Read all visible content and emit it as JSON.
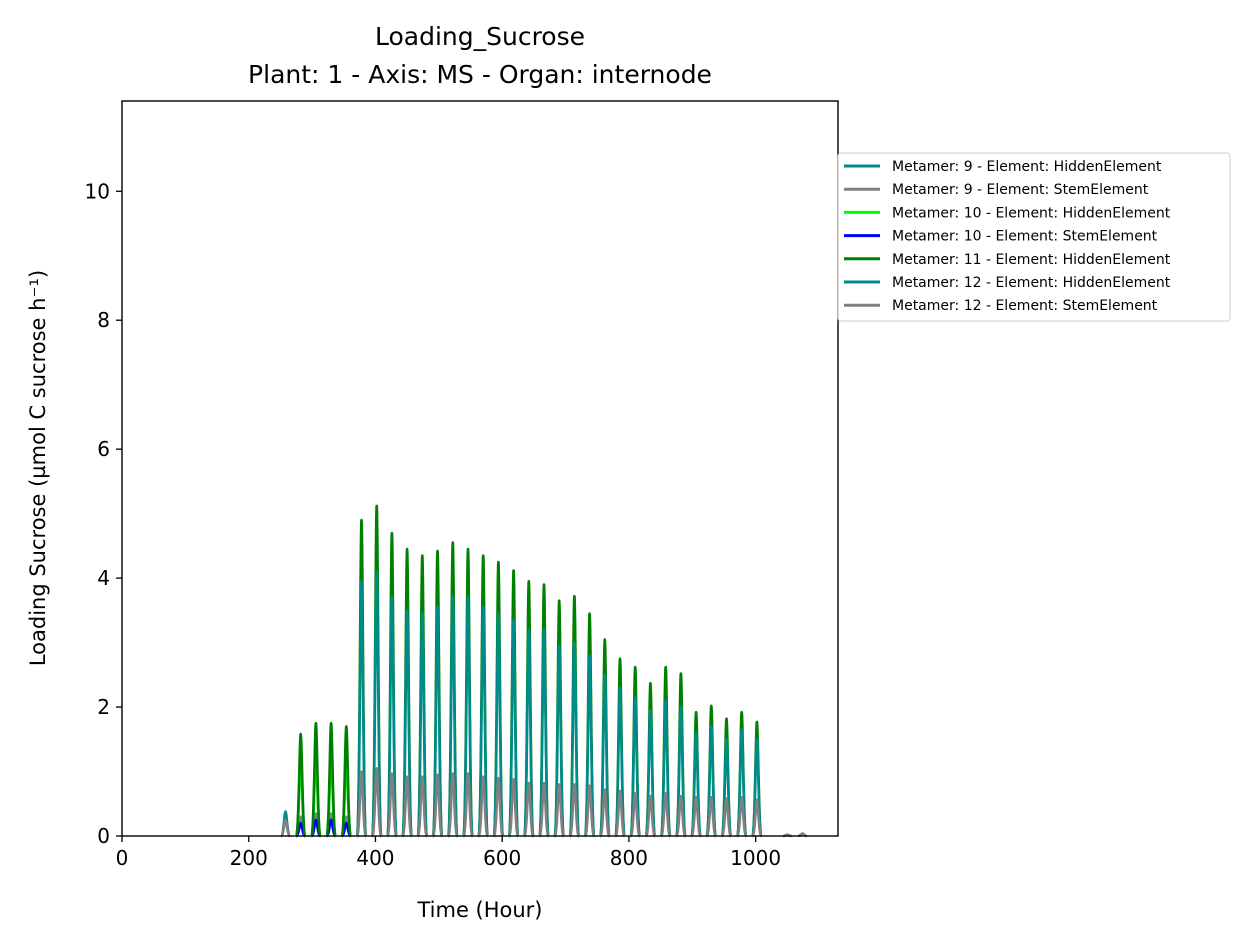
{
  "chart_data": {
    "type": "line",
    "title": "Loading_Sucrose",
    "subtitle": "Plant: 1 - Axis: MS - Organ: internode",
    "xlabel": "Time (Hour)",
    "ylabel": "Loading Sucrose (µmol C sucrose h⁻¹)",
    "xlim": [
      0,
      1130
    ],
    "ylim": [
      0,
      11.4
    ],
    "xticks": [
      0,
      200,
      400,
      600,
      800,
      1000
    ],
    "yticks": [
      0,
      2,
      4,
      6,
      8,
      10
    ],
    "grid": false,
    "legend_position": "outside-right",
    "series": [
      {
        "name": "Metamer: 9 - Element: HiddenElement",
        "color": "#008b8b",
        "peaks": [
          {
            "x": 258,
            "y": 0.38
          },
          {
            "x": 282,
            "y": 1.3
          },
          {
            "x": 306,
            "y": 1.4
          },
          {
            "x": 330,
            "y": 1.35
          },
          {
            "x": 354,
            "y": 1.25
          }
        ]
      },
      {
        "name": "Metamer: 9 - Element: StemElement",
        "color": "#808080",
        "peaks": [
          {
            "x": 258,
            "y": 0.25
          },
          {
            "x": 282,
            "y": 0.3
          },
          {
            "x": 306,
            "y": 0.35
          },
          {
            "x": 330,
            "y": 0.35
          },
          {
            "x": 354,
            "y": 0.3
          }
        ]
      },
      {
        "name": "Metamer: 10 - Element: HiddenElement",
        "color": "#00ff00",
        "peaks": [
          {
            "x": 282,
            "y": 1.2
          },
          {
            "x": 306,
            "y": 1.3
          },
          {
            "x": 330,
            "y": 1.25
          },
          {
            "x": 354,
            "y": 1.2
          }
        ]
      },
      {
        "name": "Metamer: 10 - Element: StemElement",
        "color": "#0000ff",
        "peaks": [
          {
            "x": 282,
            "y": 0.2
          },
          {
            "x": 306,
            "y": 0.25
          },
          {
            "x": 330,
            "y": 0.25
          },
          {
            "x": 354,
            "y": 0.2
          }
        ]
      },
      {
        "name": "Metamer: 11 - Element: HiddenElement",
        "color": "#008000",
        "peaks": [
          {
            "x": 282,
            "y": 1.58
          },
          {
            "x": 306,
            "y": 1.75
          },
          {
            "x": 330,
            "y": 1.75
          },
          {
            "x": 354,
            "y": 1.7
          },
          {
            "x": 378,
            "y": 4.9
          },
          {
            "x": 402,
            "y": 5.12
          },
          {
            "x": 426,
            "y": 4.7
          },
          {
            "x": 450,
            "y": 4.45
          },
          {
            "x": 474,
            "y": 4.35
          },
          {
            "x": 498,
            "y": 4.42
          },
          {
            "x": 522,
            "y": 4.55
          },
          {
            "x": 546,
            "y": 4.45
          },
          {
            "x": 570,
            "y": 4.35
          },
          {
            "x": 594,
            "y": 4.25
          },
          {
            "x": 618,
            "y": 4.12
          },
          {
            "x": 642,
            "y": 3.95
          },
          {
            "x": 666,
            "y": 3.9
          },
          {
            "x": 690,
            "y": 3.65
          },
          {
            "x": 714,
            "y": 3.72
          },
          {
            "x": 738,
            "y": 3.45
          },
          {
            "x": 762,
            "y": 3.05
          },
          {
            "x": 786,
            "y": 2.75
          },
          {
            "x": 810,
            "y": 2.62
          },
          {
            "x": 834,
            "y": 2.37
          },
          {
            "x": 858,
            "y": 2.62
          },
          {
            "x": 882,
            "y": 2.52
          },
          {
            "x": 906,
            "y": 1.92
          },
          {
            "x": 930,
            "y": 2.02
          },
          {
            "x": 954,
            "y": 1.82
          },
          {
            "x": 978,
            "y": 1.92
          },
          {
            "x": 1002,
            "y": 1.77
          }
        ]
      },
      {
        "name": "Metamer: 12 - Element: HiddenElement",
        "color": "#008b8b",
        "peaks": [
          {
            "x": 378,
            "y": 3.95
          },
          {
            "x": 402,
            "y": 4.1
          },
          {
            "x": 426,
            "y": 3.7
          },
          {
            "x": 450,
            "y": 3.5
          },
          {
            "x": 474,
            "y": 3.45
          },
          {
            "x": 498,
            "y": 3.55
          },
          {
            "x": 522,
            "y": 3.72
          },
          {
            "x": 546,
            "y": 3.7
          },
          {
            "x": 570,
            "y": 3.55
          },
          {
            "x": 594,
            "y": 3.45
          },
          {
            "x": 618,
            "y": 3.35
          },
          {
            "x": 642,
            "y": 3.2
          },
          {
            "x": 666,
            "y": 3.2
          },
          {
            "x": 690,
            "y": 2.95
          },
          {
            "x": 714,
            "y": 3.0
          },
          {
            "x": 738,
            "y": 2.8
          },
          {
            "x": 762,
            "y": 2.5
          },
          {
            "x": 786,
            "y": 2.3
          },
          {
            "x": 810,
            "y": 2.15
          },
          {
            "x": 834,
            "y": 1.95
          },
          {
            "x": 858,
            "y": 2.1
          },
          {
            "x": 882,
            "y": 2.0
          },
          {
            "x": 906,
            "y": 1.6
          },
          {
            "x": 930,
            "y": 1.7
          },
          {
            "x": 954,
            "y": 1.5
          },
          {
            "x": 978,
            "y": 1.65
          },
          {
            "x": 1002,
            "y": 1.5
          }
        ]
      },
      {
        "name": "Metamer: 12 - Element: StemElement",
        "color": "#808080",
        "peaks": [
          {
            "x": 378,
            "y": 1.0
          },
          {
            "x": 402,
            "y": 1.05
          },
          {
            "x": 426,
            "y": 0.97
          },
          {
            "x": 450,
            "y": 0.92
          },
          {
            "x": 474,
            "y": 0.92
          },
          {
            "x": 498,
            "y": 0.95
          },
          {
            "x": 522,
            "y": 0.97
          },
          {
            "x": 546,
            "y": 0.97
          },
          {
            "x": 570,
            "y": 0.92
          },
          {
            "x": 594,
            "y": 0.9
          },
          {
            "x": 618,
            "y": 0.88
          },
          {
            "x": 642,
            "y": 0.82
          },
          {
            "x": 666,
            "y": 0.82
          },
          {
            "x": 690,
            "y": 0.8
          },
          {
            "x": 714,
            "y": 0.8
          },
          {
            "x": 738,
            "y": 0.78
          },
          {
            "x": 762,
            "y": 0.72
          },
          {
            "x": 786,
            "y": 0.7
          },
          {
            "x": 810,
            "y": 0.66
          },
          {
            "x": 834,
            "y": 0.62
          },
          {
            "x": 858,
            "y": 0.66
          },
          {
            "x": 882,
            "y": 0.62
          },
          {
            "x": 906,
            "y": 0.6
          },
          {
            "x": 930,
            "y": 0.6
          },
          {
            "x": 954,
            "y": 0.58
          },
          {
            "x": 978,
            "y": 0.6
          },
          {
            "x": 1002,
            "y": 0.56
          },
          {
            "x": 1050,
            "y": 0.02
          },
          {
            "x": 1074,
            "y": 0.04
          }
        ]
      }
    ]
  }
}
